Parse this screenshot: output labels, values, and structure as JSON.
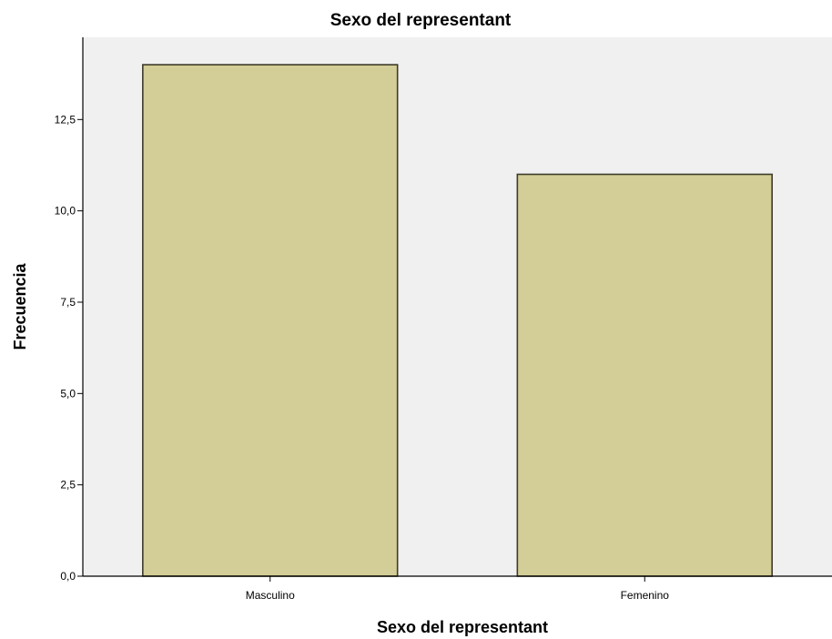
{
  "chart_data": {
    "type": "bar",
    "title": "Sexo del representant",
    "xlabel": "Sexo del representant",
    "ylabel": "Frecuencia",
    "categories": [
      "Masculino",
      "Femenino"
    ],
    "values": [
      14,
      11
    ],
    "ylim": [
      0,
      14.75
    ],
    "yticks": [
      0,
      2.5,
      5,
      7.5,
      10,
      12.5
    ],
    "ytick_labels": [
      "0,0",
      "2,5",
      "5,0",
      "7,5",
      "10,0",
      "12,5"
    ],
    "grid": false,
    "legend": "none"
  },
  "colors": {
    "plot_background": "#f0f0f0",
    "bar_fill": "#d3cd97",
    "bar_stroke": "#3e3b2a",
    "axis": "#000000"
  }
}
